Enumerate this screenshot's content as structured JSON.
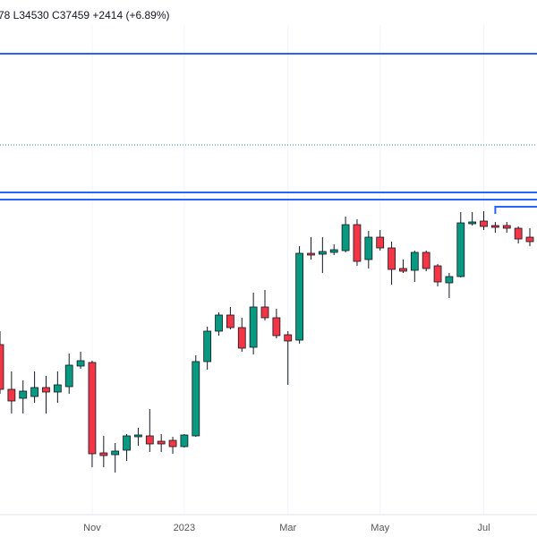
{
  "chart_data": {
    "type": "candlestick",
    "legend_text": "78  L34530  C37459  +2414 (+6.89%)",
    "up_color": "#089981",
    "down_color": "#f23645",
    "line_color": "#2962ff",
    "xlim": [
      0,
      46
    ],
    "ylim": [
      0,
      600
    ],
    "xticks": [
      {
        "value": 8,
        "label": "Nov"
      },
      {
        "value": 16,
        "label": "2023"
      },
      {
        "value": 25,
        "label": "Mar"
      },
      {
        "value": 33,
        "label": "May"
      },
      {
        "value": 42,
        "label": "Jul"
      }
    ],
    "grid": true,
    "open": [
      215,
      165,
      155,
      157,
      167,
      162,
      168,
      191,
      195,
      94,
      92,
      97,
      112,
      113,
      107,
      108,
      101,
      113,
      196,
      230,
      248,
      234,
      212,
      257,
      245,
      226,
      220,
      317,
      316,
      318,
      320,
      349,
      310,
      335,
      323,
      300,
      298,
      318,
      303,
      284,
      291,
      350,
      353,
      348,
      348,
      345,
      335
    ],
    "high": [
      230,
      185,
      175,
      185,
      180,
      185,
      205,
      207,
      197,
      113,
      105,
      115,
      122,
      143,
      115,
      112,
      115,
      203,
      235,
      251,
      257,
      245,
      273,
      276,
      255,
      230,
      325,
      335,
      335,
      327,
      358,
      355,
      342,
      343,
      330,
      310,
      320,
      320,
      305,
      295,
      363,
      363,
      364,
      352,
      352,
      347,
      345
    ],
    "low": [
      160,
      138,
      138,
      150,
      138,
      150,
      160,
      188,
      78,
      78,
      72,
      85,
      102,
      95,
      95,
      93,
      100,
      112,
      187,
      225,
      232,
      207,
      204,
      242,
      222,
      170,
      216,
      310,
      295,
      315,
      318,
      303,
      300,
      320,
      282,
      295,
      285,
      297,
      280,
      267,
      290,
      348,
      343,
      340,
      340,
      328,
      325
    ],
    "close": [
      165,
      152,
      163,
      167,
      162,
      170,
      192,
      197,
      93,
      91,
      96,
      113,
      114,
      104,
      104,
      101,
      114,
      196,
      230,
      248,
      234,
      211,
      257,
      245,
      225,
      219,
      317,
      315,
      319,
      321,
      349,
      308,
      335,
      323,
      299,
      297,
      318,
      300,
      285,
      291,
      351,
      352,
      347,
      346,
      345,
      333,
      330
    ],
    "levels": [
      540,
      385,
      377
    ],
    "short_level": {
      "value": 369,
      "from": 43
    },
    "dotted_level": 438
  }
}
